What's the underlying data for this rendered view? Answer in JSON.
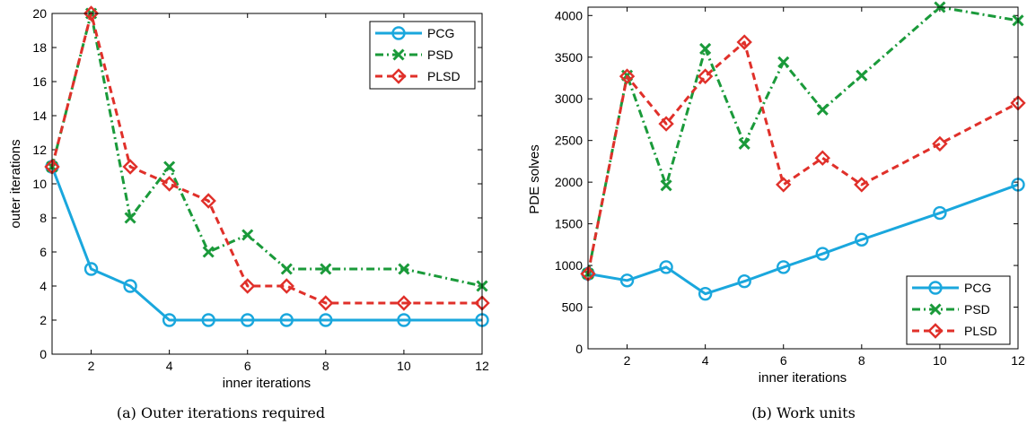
{
  "colors": {
    "PCG": "#1aa7dd",
    "PSD": "#1a9a3a",
    "PLSD": "#e0302a"
  },
  "chart_data": [
    {
      "type": "line",
      "caption": "(a)  Outer iterations required",
      "xlabel": "inner iterations",
      "ylabel": "outer iterations",
      "xlim": [
        1,
        12
      ],
      "ylim": [
        0,
        20
      ],
      "xticks": [
        2,
        4,
        6,
        8,
        10,
        12
      ],
      "yticks": [
        0,
        2,
        4,
        6,
        8,
        10,
        12,
        14,
        16,
        18,
        20
      ],
      "legend_position": "top-right",
      "x": [
        1,
        2,
        3,
        4,
        5,
        6,
        7,
        8,
        10,
        12
      ],
      "series": [
        {
          "name": "PCG",
          "values": [
            11,
            5,
            4,
            2,
            2,
            2,
            2,
            2,
            2,
            2
          ]
        },
        {
          "name": "PSD",
          "values": [
            11,
            20,
            8,
            11,
            6,
            7,
            5,
            5,
            5,
            4
          ]
        },
        {
          "name": "PLSD",
          "values": [
            11,
            20,
            11,
            10,
            9,
            4,
            4,
            3,
            3,
            3
          ]
        }
      ]
    },
    {
      "type": "line",
      "caption": "(b)  Work units",
      "xlabel": "inner iterations",
      "ylabel": "PDE solves",
      "xlim": [
        1,
        12
      ],
      "ylim": [
        0,
        4100
      ],
      "xticks": [
        2,
        4,
        6,
        8,
        10,
        12
      ],
      "yticks": [
        0,
        500,
        1000,
        1500,
        2000,
        2500,
        3000,
        3500,
        4000
      ],
      "legend_position": "bottom-right",
      "x": [
        1,
        2,
        3,
        4,
        5,
        6,
        7,
        8,
        10,
        12
      ],
      "series": [
        {
          "name": "PCG",
          "values": [
            900,
            820,
            980,
            660,
            810,
            980,
            1140,
            1310,
            1630,
            1970
          ]
        },
        {
          "name": "PSD",
          "values": [
            900,
            3280,
            1960,
            3600,
            2460,
            3440,
            2870,
            3280,
            4100,
            3940
          ]
        },
        {
          "name": "PLSD",
          "values": [
            900,
            3270,
            2700,
            3270,
            3680,
            1970,
            2290,
            1970,
            2460,
            2950
          ]
        }
      ]
    }
  ]
}
